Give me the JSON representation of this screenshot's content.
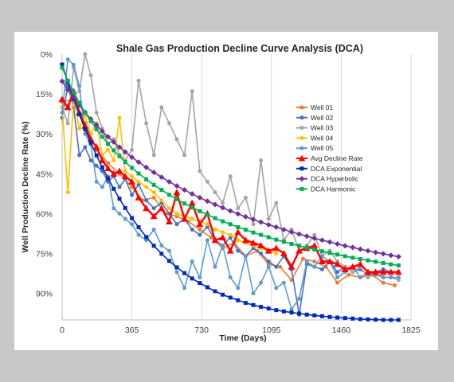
{
  "chart_data": {
    "type": "line",
    "title": "Shale Gas Production Decline Curve Analysis (DCA)",
    "xlabel": "Time (Days)",
    "ylabel": "Well Production  Decline Rate (%)",
    "xlim": [
      0,
      1825
    ],
    "ylim": [
      0,
      100
    ],
    "y_inverted": true,
    "x_ticks": [
      0,
      365,
      730,
      1095,
      1460,
      1825
    ],
    "x_tick_labels": [
      "0",
      "365",
      "730",
      "1095",
      "1460",
      "1825"
    ],
    "y_ticks": [
      0,
      15,
      30,
      45,
      60,
      75,
      90
    ],
    "y_tick_labels": [
      "0%",
      "15%",
      "30%",
      "45%",
      "60%",
      "75%",
      "90%"
    ],
    "grid": "vertical",
    "legend_position": "right",
    "series": [
      {
        "name": "Well 01",
        "color": "#ed7d31",
        "marker": "circle",
        "x": [
          0,
          60,
          120,
          180,
          240,
          300,
          365,
          420,
          480,
          540,
          600,
          660,
          720,
          780,
          840,
          900,
          960,
          1020,
          1080,
          1140,
          1200,
          1260,
          1320,
          1380,
          1440,
          1500,
          1560,
          1620,
          1680,
          1740
        ],
        "y": [
          18,
          17,
          26,
          36,
          41,
          45,
          50,
          55,
          54,
          60,
          61,
          63,
          66,
          69,
          73,
          71,
          76,
          74,
          79,
          80,
          85,
          77,
          78,
          80,
          86,
          83,
          84,
          83,
          86,
          87
        ]
      },
      {
        "name": "Well 02",
        "color": "#4472c4",
        "marker": "circle",
        "x": [
          0,
          30,
          60,
          90,
          120,
          150,
          180,
          210,
          240,
          270,
          300,
          330,
          365,
          400,
          440,
          480,
          520,
          560,
          600,
          640,
          680,
          720,
          760,
          800,
          840,
          880,
          920,
          960,
          1000,
          1040,
          1080,
          1120,
          1160,
          1200,
          1240,
          1280,
          1320,
          1360,
          1400,
          1440,
          1480,
          1520,
          1560,
          1600,
          1640,
          1680,
          1720,
          1760
        ],
        "y": [
          24,
          12,
          20,
          38,
          35,
          40,
          42,
          44,
          48,
          46,
          50,
          47,
          53,
          49,
          55,
          58,
          56,
          60,
          64,
          62,
          66,
          68,
          65,
          70,
          72,
          69,
          74,
          76,
          73,
          75,
          78,
          80,
          76,
          81,
          98,
          79,
          80,
          81,
          78,
          82,
          80,
          82,
          81,
          83,
          82,
          81,
          82,
          82
        ]
      },
      {
        "name": "Well 03",
        "color": "#a5a5a5",
        "marker": "circle",
        "x": [
          0,
          30,
          60,
          90,
          120,
          150,
          180,
          210,
          240,
          270,
          300,
          330,
          365,
          400,
          440,
          480,
          520,
          560,
          600,
          640,
          680,
          720,
          760,
          800,
          840,
          880,
          920,
          960,
          1000,
          1040,
          1080,
          1120,
          1160,
          1200,
          1240,
          1280,
          1320,
          1360,
          1400,
          1440,
          1480,
          1520,
          1560,
          1600,
          1640,
          1680,
          1720,
          1760
        ],
        "y": [
          20,
          26,
          5,
          14,
          0,
          8,
          22,
          28,
          34,
          32,
          38,
          40,
          36,
          10,
          26,
          38,
          20,
          26,
          32,
          38,
          14,
          44,
          48,
          52,
          56,
          46,
          58,
          54,
          64,
          40,
          62,
          56,
          70,
          66,
          74,
          72,
          68,
          76,
          74,
          78,
          80,
          82,
          80,
          84,
          82,
          84,
          84,
          85
        ]
      },
      {
        "name": "Well 04",
        "color": "#ffc000",
        "marker": "circle",
        "x": [
          0,
          30,
          60,
          90,
          120,
          150,
          180,
          210,
          240,
          270,
          300,
          330,
          365,
          400,
          440,
          480,
          520,
          560,
          600,
          640,
          680,
          720,
          760,
          800,
          840,
          880,
          920,
          960,
          1000,
          1040,
          1080,
          1120
        ],
        "y": [
          20,
          52,
          17,
          28,
          23,
          30,
          26,
          38,
          36,
          40,
          24,
          44,
          46,
          48,
          50,
          52,
          55,
          58,
          60,
          61,
          62,
          63,
          64,
          66,
          67,
          68,
          70,
          71,
          72,
          73,
          74,
          75
        ]
      },
      {
        "name": "Well 05",
        "color": "#5b9bd5",
        "marker": "circle",
        "x": [
          0,
          30,
          60,
          90,
          120,
          150,
          180,
          210,
          240,
          270,
          300,
          330,
          365,
          400,
          440,
          480,
          520,
          560,
          600,
          640,
          680,
          720,
          760,
          800,
          840,
          880,
          920,
          960,
          1000,
          1040,
          1080,
          1120,
          1160,
          1200,
          1240,
          1280,
          1320,
          1360,
          1400,
          1440,
          1480,
          1520,
          1560,
          1600,
          1640,
          1680,
          1720,
          1760
        ],
        "y": [
          22,
          2,
          4,
          12,
          30,
          34,
          48,
          50,
          46,
          58,
          60,
          62,
          64,
          68,
          70,
          66,
          72,
          74,
          82,
          88,
          78,
          84,
          70,
          80,
          72,
          84,
          88,
          76,
          90,
          86,
          80,
          88,
          86,
          96,
          92,
          78,
          80,
          76,
          78,
          84,
          82,
          80,
          84,
          82,
          83,
          84,
          84,
          84
        ]
      },
      {
        "name": "Avg Decline Rate",
        "color": "#ff0000",
        "marker": "triangle",
        "x": [
          0,
          30,
          60,
          90,
          120,
          150,
          180,
          210,
          240,
          270,
          300,
          330,
          365,
          400,
          440,
          480,
          520,
          560,
          600,
          640,
          680,
          720,
          760,
          800,
          840,
          880,
          920,
          960,
          1000,
          1040,
          1080,
          1120,
          1160,
          1200,
          1240,
          1280,
          1320,
          1360,
          1400,
          1440,
          1480,
          1520,
          1560,
          1600,
          1640,
          1680,
          1720,
          1760
        ],
        "y": [
          17,
          20,
          14,
          22,
          27,
          32,
          35,
          40,
          43,
          45,
          44,
          46,
          48,
          54,
          58,
          61,
          58,
          63,
          52,
          62,
          56,
          64,
          60,
          70,
          69,
          74,
          67,
          70,
          71,
          72,
          74,
          73,
          75,
          80,
          74,
          73,
          72,
          78,
          78,
          79,
          81,
          80,
          79,
          82,
          82,
          82,
          82,
          82
        ]
      },
      {
        "name": "DCA Exponential",
        "color": "#002ab8",
        "marker": "square",
        "x": [
          0,
          30,
          60,
          90,
          120,
          150,
          180,
          210,
          240,
          270,
          300,
          330,
          365,
          400,
          440,
          480,
          520,
          560,
          600,
          640,
          680,
          720,
          760,
          800,
          840,
          880,
          920,
          960,
          1000,
          1040,
          1080,
          1120,
          1160,
          1200,
          1240,
          1280,
          1320,
          1360,
          1400,
          1440,
          1480,
          1520,
          1560,
          1600,
          1640,
          1680,
          1720,
          1760
        ],
        "y": [
          3.9,
          10.6,
          16.9,
          22.7,
          28.2,
          33.3,
          38.1,
          42.6,
          46.8,
          50.7,
          54.4,
          57.9,
          61.7,
          65.1,
          68.8,
          72.1,
          75.1,
          77.8,
          80.2,
          82.4,
          84.4,
          86.1,
          87.7,
          89.2,
          90.5,
          91.6,
          92.6,
          93.6,
          94.4,
          95.1,
          95.7,
          96.3,
          96.8,
          97.2,
          97.6,
          98.0,
          98.3,
          98.6,
          98.9,
          99.1,
          99.3,
          99.5,
          99.7,
          99.8,
          99.9,
          100,
          100,
          100
        ]
      },
      {
        "name": "DCA Hyperbolic",
        "color": "#7030a0",
        "marker": "diamond",
        "x": [
          0,
          30,
          60,
          90,
          120,
          150,
          180,
          210,
          240,
          270,
          300,
          330,
          365,
          400,
          440,
          480,
          520,
          560,
          600,
          640,
          680,
          720,
          760,
          800,
          840,
          880,
          920,
          960,
          1000,
          1040,
          1080,
          1120,
          1160,
          1200,
          1240,
          1280,
          1320,
          1360,
          1400,
          1440,
          1480,
          1520,
          1560,
          1600,
          1640,
          1680,
          1720,
          1760
        ],
        "y": [
          10.2,
          13.4,
          16.4,
          19.2,
          21.9,
          24.4,
          26.7,
          29.0,
          31.1,
          33.1,
          35.0,
          36.8,
          38.8,
          40.6,
          42.6,
          44.5,
          46.3,
          48.0,
          49.6,
          51.1,
          52.6,
          54.0,
          55.3,
          56.6,
          57.8,
          59.0,
          60.1,
          61.2,
          62.2,
          63.2,
          64.2,
          65.1,
          66.0,
          66.9,
          67.7,
          68.5,
          69.3,
          70.0,
          70.7,
          71.4,
          72.1,
          72.7,
          73.4,
          74.0,
          74.6,
          75.1,
          75.7,
          76.2
        ]
      },
      {
        "name": "DCA Harmonic",
        "color": "#00b050",
        "marker": "square",
        "x": [
          0,
          30,
          60,
          90,
          120,
          150,
          180,
          210,
          240,
          270,
          300,
          330,
          365,
          400,
          440,
          480,
          520,
          560,
          600,
          640,
          680,
          720,
          760,
          800,
          840,
          880,
          920,
          960,
          1000,
          1040,
          1080,
          1120,
          1160,
          1200,
          1240,
          1280,
          1320,
          1360,
          1400,
          1440,
          1480,
          1520,
          1560,
          1600,
          1640,
          1680,
          1720,
          1760
        ],
        "y": [
          5.1,
          10.0,
          14.3,
          18.3,
          21.9,
          25.2,
          28.3,
          31.1,
          33.7,
          36.2,
          38.4,
          40.6,
          42.8,
          44.9,
          47.1,
          49.2,
          51.1,
          52.9,
          54.6,
          56.2,
          57.7,
          59.1,
          60.4,
          61.7,
          62.9,
          64.0,
          65.1,
          66.1,
          67.1,
          68.0,
          68.9,
          69.8,
          70.6,
          71.4,
          72.1,
          72.8,
          73.5,
          74.2,
          74.8,
          75.4,
          76.0,
          76.6,
          77.1,
          77.6,
          78.1,
          78.6,
          79.1,
          79.5
        ]
      }
    ]
  }
}
